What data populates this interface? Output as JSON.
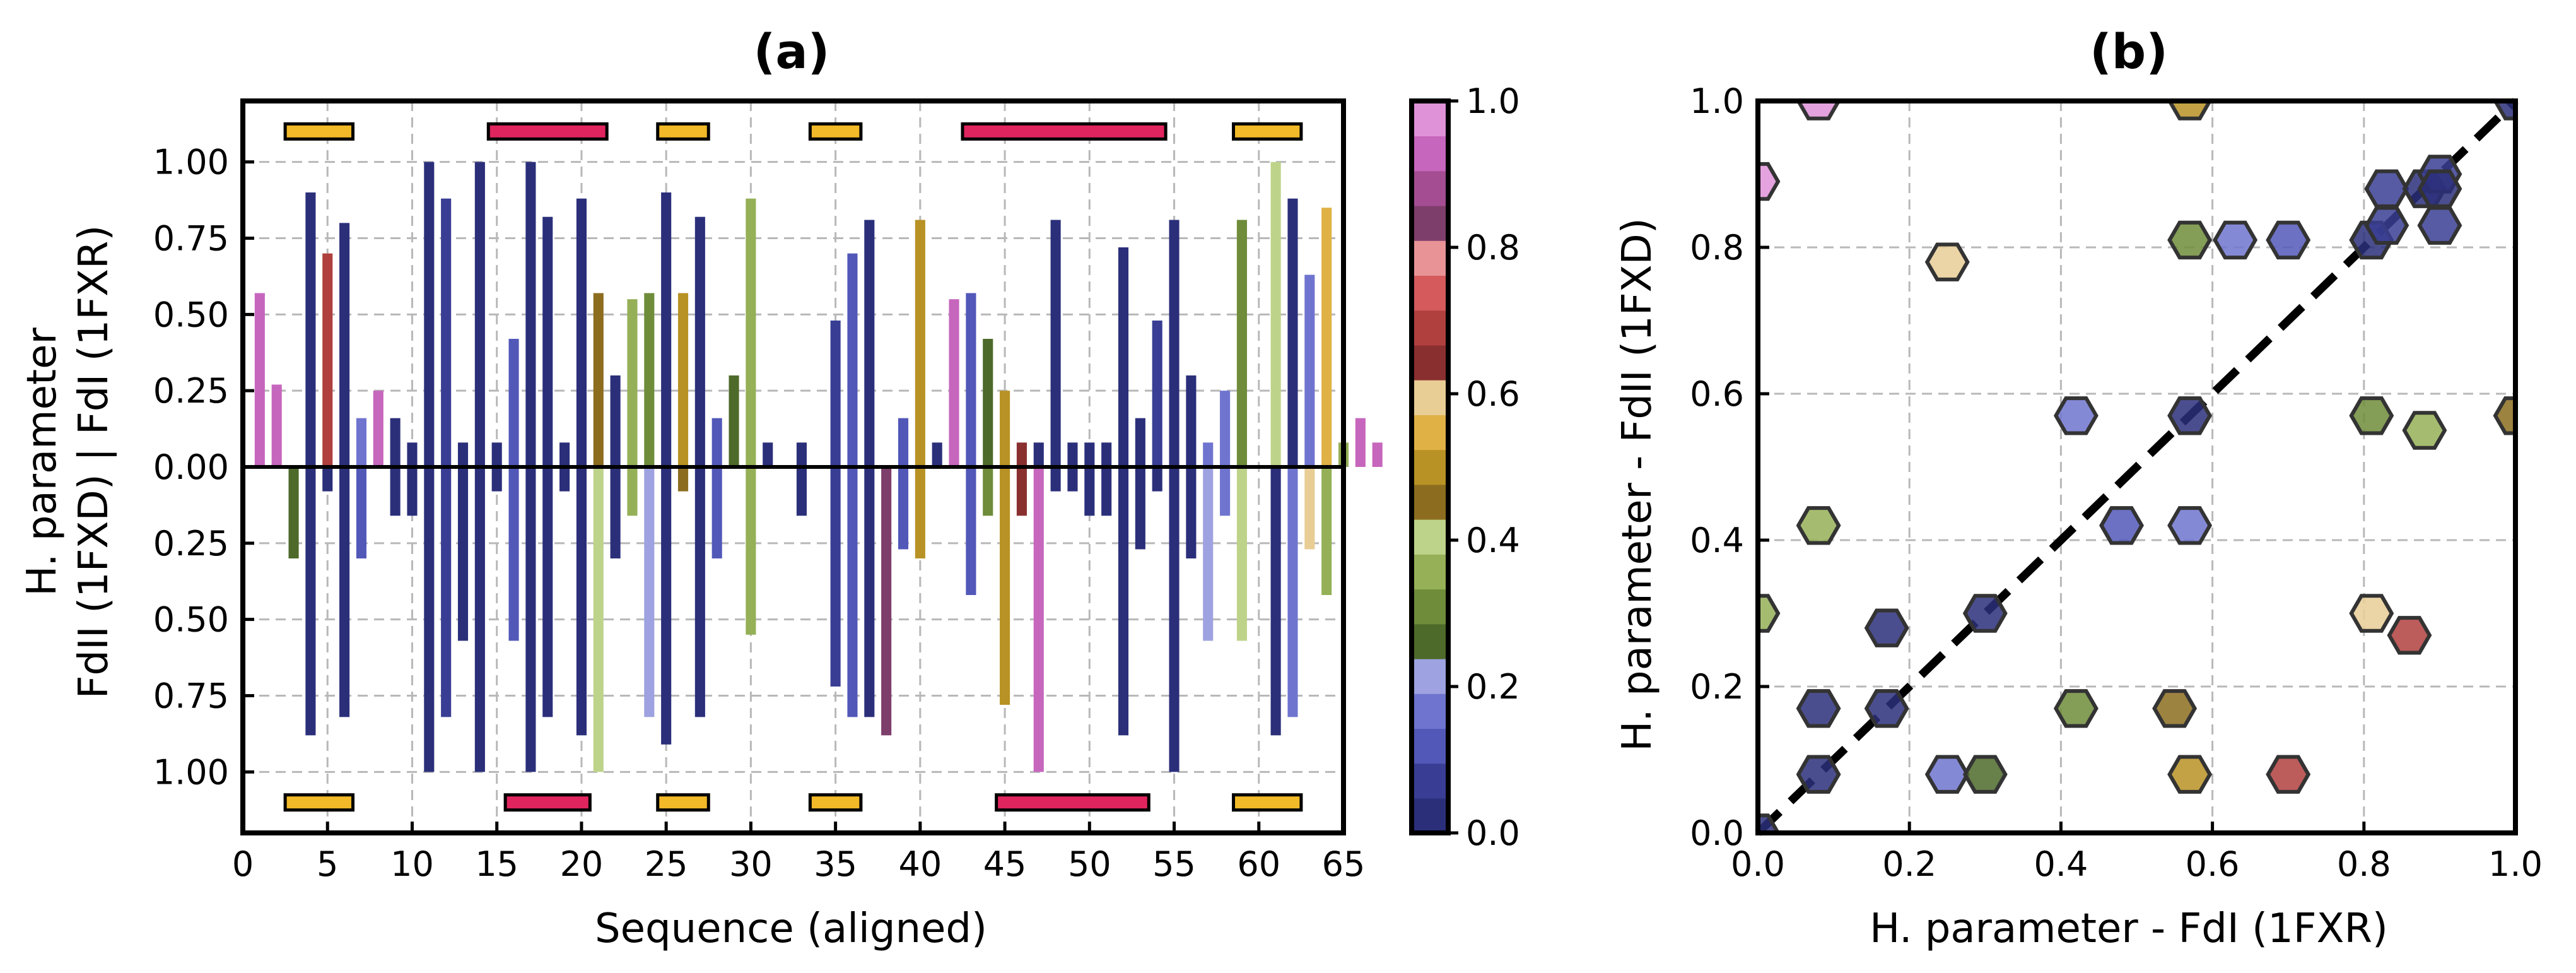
{
  "chart_data": [
    {
      "panel": "(a)",
      "type": "bar",
      "title": "(a)",
      "xlabel": "Sequence (aligned)",
      "ylabel_line1": "H. parameter",
      "ylabel_line2": "FdII (1FXD) | FdI (1FXR)",
      "xlim": [
        0,
        65
      ],
      "ylim": [
        -1.2,
        1.2
      ],
      "xticks": [
        0,
        5,
        10,
        15,
        20,
        25,
        30,
        35,
        40,
        45,
        50,
        55,
        60,
        65
      ],
      "yticks": [
        -1.0,
        -0.75,
        -0.5,
        -0.25,
        0.0,
        0.25,
        0.5,
        0.75,
        1.0
      ],
      "ytick_labels": [
        "1.00",
        "0.75",
        "0.50",
        "0.25",
        "0.00",
        "0.25",
        "0.50",
        "0.75",
        "1.00"
      ],
      "grid": true,
      "colorbar": {
        "range": [
          0.0,
          1.0
        ],
        "ticks": [
          0.0,
          0.2,
          0.4,
          0.6,
          0.8,
          1.0
        ],
        "tick_labels": [
          "0.0",
          "0.2",
          "0.4",
          "0.6",
          "0.8",
          "1.0"
        ],
        "colors": [
          "#2b2f7a",
          "#393e94",
          "#5258b8",
          "#6f74cf",
          "#9ea2e0",
          "#4e6a2a",
          "#6f8c3a",
          "#95b057",
          "#bdd38a",
          "#8c6d1f",
          "#b89224",
          "#e0b145",
          "#e8cd95",
          "#8a2f2f",
          "#b0403e",
          "#d45a5c",
          "#e89497",
          "#7e3e6b",
          "#a44d92",
          "#c766bd",
          "#df92d8"
        ]
      },
      "top_series_label": "FdI (1FXR)",
      "bottom_series_label": "FdII (1FXD)",
      "top_values": [
        0.57,
        0.27,
        0.0,
        0.9,
        0.7,
        0.8,
        0.16,
        0.25,
        0.16,
        0.08,
        1.0,
        0.88,
        0.08,
        1.0,
        0.08,
        0.42,
        1.0,
        0.82,
        0.08,
        0.88,
        0.57,
        0.3,
        0.55,
        0.57,
        0.9,
        0.57,
        0.82,
        0.16,
        0.3,
        0.88,
        0.08,
        0.0,
        0.08,
        0.0,
        0.48,
        0.7,
        0.81,
        0.0,
        0.16,
        0.81,
        0.08,
        0.55,
        0.57,
        0.42,
        0.25,
        0.08,
        0.08,
        0.81,
        0.08,
        0.08,
        0.08,
        0.72,
        0.16,
        0.48,
        0.81,
        0.3,
        0.08,
        0.25,
        0.81,
        0.0,
        1.0,
        0.88,
        0.63,
        0.85,
        0.08,
        0.16,
        0.08
      ],
      "top_color_values": [
        0.95,
        0.95,
        0.0,
        0.0,
        0.7,
        0.03,
        0.15,
        0.95,
        0.0,
        0.0,
        0.0,
        0.07,
        0.0,
        0.0,
        0.0,
        0.12,
        0.0,
        0.03,
        0.0,
        0.0,
        0.44,
        0.0,
        0.36,
        0.3,
        0.03,
        0.5,
        0.0,
        0.12,
        0.25,
        0.36,
        0.0,
        0.0,
        0.0,
        0.0,
        0.07,
        0.12,
        0.03,
        0.0,
        0.12,
        0.52,
        0.0,
        0.95,
        0.12,
        0.28,
        0.52,
        0.66,
        0.0,
        0.03,
        0.0,
        0.0,
        0.0,
        0.03,
        0.0,
        0.07,
        0.03,
        0.0,
        0.15,
        0.18,
        0.3,
        0.0,
        0.42,
        0.0,
        0.15,
        0.56,
        0.36,
        0.95,
        0.95
      ],
      "bottom_values": [
        0.0,
        0.0,
        0.3,
        0.88,
        0.08,
        0.82,
        0.3,
        0.0,
        0.16,
        0.16,
        1.0,
        0.82,
        0.57,
        1.0,
        0.08,
        0.57,
        1.0,
        0.82,
        0.08,
        0.88,
        1.0,
        0.3,
        0.16,
        0.82,
        0.91,
        0.08,
        0.82,
        0.3,
        0.0,
        0.55,
        0.0,
        0.0,
        0.16,
        0.0,
        0.72,
        0.82,
        0.82,
        0.88,
        0.27,
        0.3,
        0.0,
        0.0,
        0.42,
        0.16,
        0.78,
        0.16,
        1.0,
        0.08,
        0.08,
        0.16,
        0.16,
        0.88,
        0.27,
        0.08,
        1.0,
        0.3,
        0.57,
        0.16,
        0.57,
        0.0,
        0.88,
        0.82,
        0.27,
        0.42,
        0.0,
        0.0,
        0.0
      ],
      "bottom_color_values": [
        0.0,
        0.0,
        0.28,
        0.0,
        0.0,
        0.03,
        0.12,
        0.0,
        0.0,
        0.0,
        0.0,
        0.07,
        0.0,
        0.0,
        0.0,
        0.12,
        0.0,
        0.03,
        0.0,
        0.0,
        0.42,
        0.0,
        0.36,
        0.22,
        0.03,
        0.44,
        0.0,
        0.12,
        0.0,
        0.36,
        0.0,
        0.0,
        0.0,
        0.0,
        0.07,
        0.12,
        0.03,
        0.82,
        0.12,
        0.52,
        0.0,
        0.0,
        0.12,
        0.3,
        0.52,
        0.66,
        0.92,
        0.0,
        0.0,
        0.0,
        0.0,
        0.03,
        0.0,
        0.0,
        0.03,
        0.0,
        0.22,
        0.18,
        0.42,
        0.0,
        0.0,
        0.15,
        0.58,
        0.36,
        0.0,
        0.0,
        0.0
      ],
      "secondary_structure_top": [
        {
          "start": 2.5,
          "end": 6.5,
          "kind": "strand",
          "color": "#f2b928"
        },
        {
          "start": 14.5,
          "end": 21.5,
          "kind": "helix",
          "color": "#e0245e"
        },
        {
          "start": 24.5,
          "end": 27.5,
          "kind": "strand",
          "color": "#f2b928"
        },
        {
          "start": 33.5,
          "end": 36.5,
          "kind": "strand",
          "color": "#f2b928"
        },
        {
          "start": 42.5,
          "end": 54.5,
          "kind": "helix",
          "color": "#e0245e"
        },
        {
          "start": 58.5,
          "end": 62.5,
          "kind": "strand",
          "color": "#f2b928"
        }
      ],
      "secondary_structure_bottom": [
        {
          "start": 2.5,
          "end": 6.5,
          "kind": "strand",
          "color": "#f2b928"
        },
        {
          "start": 15.5,
          "end": 20.5,
          "kind": "helix",
          "color": "#e0245e"
        },
        {
          "start": 24.5,
          "end": 27.5,
          "kind": "strand",
          "color": "#f2b928"
        },
        {
          "start": 33.5,
          "end": 36.5,
          "kind": "strand",
          "color": "#f2b928"
        },
        {
          "start": 44.5,
          "end": 53.5,
          "kind": "helix",
          "color": "#e0245e"
        },
        {
          "start": 58.5,
          "end": 62.5,
          "kind": "strand",
          "color": "#f2b928"
        }
      ]
    },
    {
      "panel": "(b)",
      "type": "scatter",
      "title": "(b)",
      "xlabel": "H. parameter - FdI (1FXR)",
      "ylabel": "H. parameter - FdII (1FXD)",
      "xlim": [
        0.0,
        1.0
      ],
      "ylim": [
        0.0,
        1.0
      ],
      "xticks": [
        0.0,
        0.2,
        0.4,
        0.6,
        0.8,
        1.0
      ],
      "xtick_labels": [
        "0.0",
        "0.2",
        "0.4",
        "0.6",
        "0.8",
        "1.0"
      ],
      "yticks": [
        0.0,
        0.2,
        0.4,
        0.6,
        0.8,
        1.0
      ],
      "ytick_labels": [
        "0.0",
        "0.2",
        "0.4",
        "0.6",
        "0.8",
        "1.0"
      ],
      "grid": true,
      "marker": "hexagon",
      "diagonal_line": {
        "from": [
          0,
          0
        ],
        "to": [
          1,
          1
        ],
        "style": "dashed",
        "color": "#000000"
      },
      "points": [
        {
          "x": 0.0,
          "y": 0.0,
          "c": 0.0
        },
        {
          "x": 0.0,
          "y": 0.89,
          "c": 0.96
        },
        {
          "x": 0.0,
          "y": 0.3,
          "c": 0.36
        },
        {
          "x": 0.08,
          "y": 1.0,
          "c": 0.96
        },
        {
          "x": 0.08,
          "y": 0.42,
          "c": 0.36
        },
        {
          "x": 0.08,
          "y": 0.17,
          "c": 0.0
        },
        {
          "x": 0.08,
          "y": 0.08,
          "c": 0.0
        },
        {
          "x": 0.17,
          "y": 0.28,
          "c": 0.03
        },
        {
          "x": 0.17,
          "y": 0.17,
          "c": 0.03
        },
        {
          "x": 0.25,
          "y": 0.78,
          "c": 0.58
        },
        {
          "x": 0.25,
          "y": 0.08,
          "c": 0.15
        },
        {
          "x": 0.3,
          "y": 0.3,
          "c": 0.0
        },
        {
          "x": 0.3,
          "y": 0.08,
          "c": 0.28
        },
        {
          "x": 0.42,
          "y": 0.57,
          "c": 0.15
        },
        {
          "x": 0.42,
          "y": 0.17,
          "c": 0.3
        },
        {
          "x": 0.48,
          "y": 0.42,
          "c": 0.1
        },
        {
          "x": 0.55,
          "y": 0.17,
          "c": 0.44
        },
        {
          "x": 0.57,
          "y": 1.0,
          "c": 0.52
        },
        {
          "x": 0.57,
          "y": 0.81,
          "c": 0.3
        },
        {
          "x": 0.57,
          "y": 0.57,
          "c": 0.0
        },
        {
          "x": 0.57,
          "y": 0.42,
          "c": 0.15
        },
        {
          "x": 0.57,
          "y": 0.08,
          "c": 0.52
        },
        {
          "x": 0.63,
          "y": 0.81,
          "c": 0.15
        },
        {
          "x": 0.7,
          "y": 0.81,
          "c": 0.12
        },
        {
          "x": 0.7,
          "y": 0.08,
          "c": 0.7
        },
        {
          "x": 0.81,
          "y": 0.81,
          "c": 0.0
        },
        {
          "x": 0.81,
          "y": 0.57,
          "c": 0.3
        },
        {
          "x": 0.81,
          "y": 0.3,
          "c": 0.58
        },
        {
          "x": 0.83,
          "y": 0.83,
          "c": 0.05
        },
        {
          "x": 0.83,
          "y": 0.88,
          "c": 0.07
        },
        {
          "x": 0.86,
          "y": 0.27,
          "c": 0.7
        },
        {
          "x": 0.88,
          "y": 0.55,
          "c": 0.36
        },
        {
          "x": 0.88,
          "y": 0.88,
          "c": 0.03
        },
        {
          "x": 0.9,
          "y": 0.83,
          "c": 0.07
        },
        {
          "x": 0.9,
          "y": 0.9,
          "c": 0.07
        },
        {
          "x": 0.9,
          "y": 0.88,
          "c": 0.03
        },
        {
          "x": 1.0,
          "y": 1.0,
          "c": 0.0
        },
        {
          "x": 1.0,
          "y": 0.57,
          "c": 0.44
        }
      ]
    }
  ]
}
